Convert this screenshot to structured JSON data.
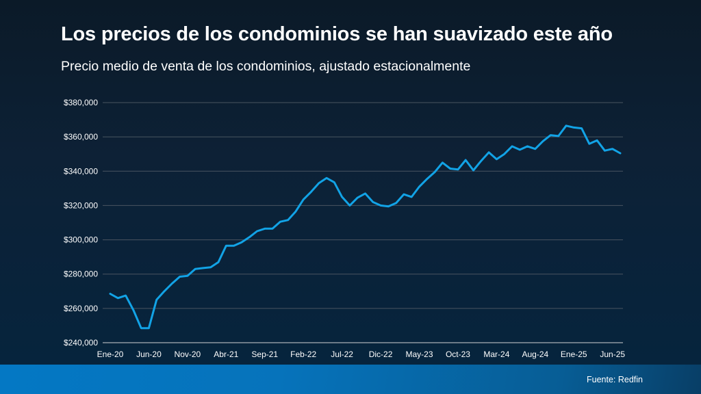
{
  "title": "Los precios de los condominios se han suavizado este año",
  "subtitle": "Precio medio de venta de los condominios, ajustado estacionalmente",
  "source": "Fuente: Redfin",
  "colors": {
    "line": "#12a3e6",
    "grid": "#4a5560",
    "axis": "#a9b0b6"
  },
  "chart_data": {
    "type": "line",
    "title": "Los precios de los condominios se han suavizado este año",
    "subtitle": "Precio medio de venta de los condominios, ajustado estacionalmente",
    "xlabel": "",
    "ylabel": "",
    "ylim": [
      240000,
      380000
    ],
    "yticks": [
      240000,
      260000,
      280000,
      300000,
      320000,
      340000,
      360000,
      380000
    ],
    "ytick_labels": [
      "$240,000",
      "$260,000",
      "$280,000",
      "$300,000",
      "$320,000",
      "$340,000",
      "$360,000",
      "$380,000"
    ],
    "xtick_labels": [
      "Ene-20",
      "Jun-20",
      "Nov-20",
      "Abr-21",
      "Sep-21",
      "Feb-22",
      "Jul-22",
      "Dic-22",
      "May-23",
      "Oct-23",
      "Mar-24",
      "Aug-24",
      "Ene-25",
      "Jun-25"
    ],
    "xtick_interval_months": 5,
    "grid": true,
    "legend": "none",
    "series": [
      {
        "name": "Precio medio de venta de condominios",
        "x_start": "Ene-20",
        "frequency": "monthly",
        "values": [
          268500,
          266000,
          267500,
          259000,
          248500,
          248500,
          265000,
          270000,
          274500,
          278500,
          279000,
          283000,
          283500,
          284000,
          287000,
          296500,
          296500,
          298500,
          301500,
          305000,
          306500,
          306500,
          310500,
          311500,
          316500,
          323500,
          328000,
          333000,
          336000,
          333500,
          325000,
          320000,
          324500,
          327000,
          322000,
          320000,
          319500,
          321500,
          326500,
          325000,
          331000,
          335500,
          339500,
          345000,
          341500,
          341000,
          346500,
          340500,
          346000,
          351000,
          347000,
          350000,
          354500,
          352500,
          354500,
          353000,
          357500,
          361000,
          360500,
          366500,
          365500,
          365000,
          356000,
          358000,
          352000,
          353000,
          350500
        ]
      }
    ]
  }
}
